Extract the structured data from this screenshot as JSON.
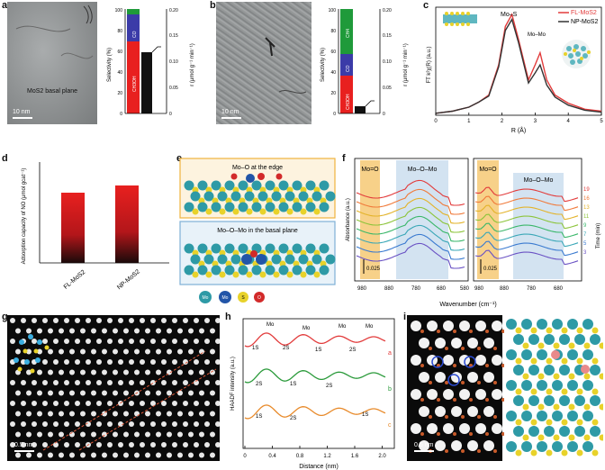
{
  "panels": {
    "a": {
      "label": "a",
      "image_text": "MoS2 basal plane",
      "scale": "10 nm",
      "ylabel_left": "Selectivity (%)",
      "ylabel_right": "r (μmol g⁻¹ min⁻¹)",
      "ticks_left": [
        "0",
        "20",
        "40",
        "60",
        "80",
        "100"
      ],
      "ticks_right": [
        "0",
        "0.05",
        "0.10",
        "0.15",
        "0.20"
      ],
      "seg_labels": [
        "CH3OH",
        "CO",
        "CH4"
      ]
    },
    "b": {
      "label": "b",
      "scale": "10 nm",
      "ylabel_left": "Selectivity (%)",
      "ylabel_right": "r (μmol g⁻¹ min⁻¹)",
      "ticks_left": [
        "0",
        "20",
        "40",
        "60",
        "80",
        "100"
      ],
      "ticks_right": [
        "0",
        "0.05",
        "0.10",
        "0.15",
        "0.20"
      ],
      "seg_labels": [
        "CH3OH",
        "CO",
        "CH4"
      ]
    },
    "c": {
      "label": "c",
      "ylabel": "FT k²χ(R) (a.u.)",
      "xlabel": "R (Å)",
      "xticks": [
        "0",
        "1",
        "2",
        "3",
        "4",
        "5"
      ],
      "annot_mos": "Mo–S",
      "annot_momo": "Mo–Mo",
      "legend": [
        "FL-MoS2",
        "NP-MoS2"
      ]
    },
    "d": {
      "label": "d",
      "ylabel": "Adsorption capacity of NO (μmol gcat⁻¹)",
      "categories": [
        "FL-MoS2",
        "NP-MoS2"
      ]
    },
    "e": {
      "label": "e",
      "top_title": "Mo–O at the edge",
      "bottom_title": "Mo–O–Mo in the basal plane",
      "legend": [
        "Mo",
        "Mo",
        "S",
        "O"
      ]
    },
    "f": {
      "label": "f",
      "ylabel": "Absorbance (a.u.)",
      "xlabel": "Wavenumber (cm⁻¹)",
      "xticks": [
        "980",
        "880",
        "780",
        "680",
        "580",
        "980",
        "880",
        "780",
        "680"
      ],
      "band1": "Mo=O",
      "band2": "Mo–O–Mo",
      "band3": "Mo=O",
      "band4": "Mo–O–Mo",
      "scale1": "0.025",
      "scale2": "0.025",
      "time_label": "Time (min)",
      "times": [
        "19",
        "16",
        "13",
        "11",
        "9",
        "7",
        "5",
        "3"
      ]
    },
    "g": {
      "label": "g",
      "scale": "0.5 nm"
    },
    "h": {
      "label": "h",
      "ylabel": "HAADF intensity (a.u.)",
      "xlabel": "Distance (nm)",
      "xticks": [
        "0",
        "0.4",
        "0.8",
        "1.2",
        "1.6",
        "2.0"
      ],
      "curve_labels": [
        "a",
        "b",
        "c"
      ],
      "peak_labels": [
        "Mo",
        "Mo",
        "Mo",
        "Mo",
        "1S",
        "2S",
        "1S",
        "2S",
        "2S",
        "1S",
        "2S",
        "1S",
        "2S",
        "1S"
      ]
    },
    "i": {
      "label": "i",
      "scale": "0.5 nm"
    }
  },
  "chart_data": [
    {
      "type": "bar",
      "title": "",
      "categories": [
        "FL-MoS2",
        "NP-MoS2"
      ],
      "values": [
        113,
        123
      ],
      "ylabel": "Adsorption capacity of NO (μmol gcat⁻¹)"
    },
    {
      "type": "line",
      "xlabel": "R (Å)",
      "ylabel": "FT k²χ(R) (a.u.)",
      "xlim": [
        0,
        5
      ],
      "series": [
        {
          "name": "FL-MoS2",
          "color": "#e23b3b",
          "x": [
            0,
            0.5,
            1,
            1.3,
            1.6,
            1.9,
            2.1,
            2.3,
            2.5,
            2.8,
            3.0,
            3.15,
            3.35,
            3.6,
            4.0,
            4.5,
            5.0
          ],
          "y": [
            0.02,
            0.04,
            0.08,
            0.13,
            0.2,
            0.5,
            0.88,
            1.0,
            0.75,
            0.35,
            0.5,
            0.62,
            0.35,
            0.2,
            0.12,
            0.06,
            0.04
          ]
        },
        {
          "name": "NP-MoS2",
          "color": "#333333",
          "x": [
            0,
            0.5,
            1,
            1.3,
            1.6,
            1.9,
            2.1,
            2.3,
            2.5,
            2.8,
            3.0,
            3.15,
            3.35,
            3.6,
            4.0,
            4.5,
            5.0
          ],
          "y": [
            0.02,
            0.04,
            0.08,
            0.13,
            0.19,
            0.48,
            0.84,
            0.95,
            0.72,
            0.32,
            0.42,
            0.5,
            0.3,
            0.18,
            0.1,
            0.05,
            0.03
          ]
        }
      ]
    }
  ],
  "colors": {
    "red": "#e8201f",
    "blue": "#3b3ba8",
    "green": "#1f9a3a",
    "black": "#111111",
    "accent_orange": "#f4c36b",
    "accent_blue": "#cfe0ef"
  }
}
